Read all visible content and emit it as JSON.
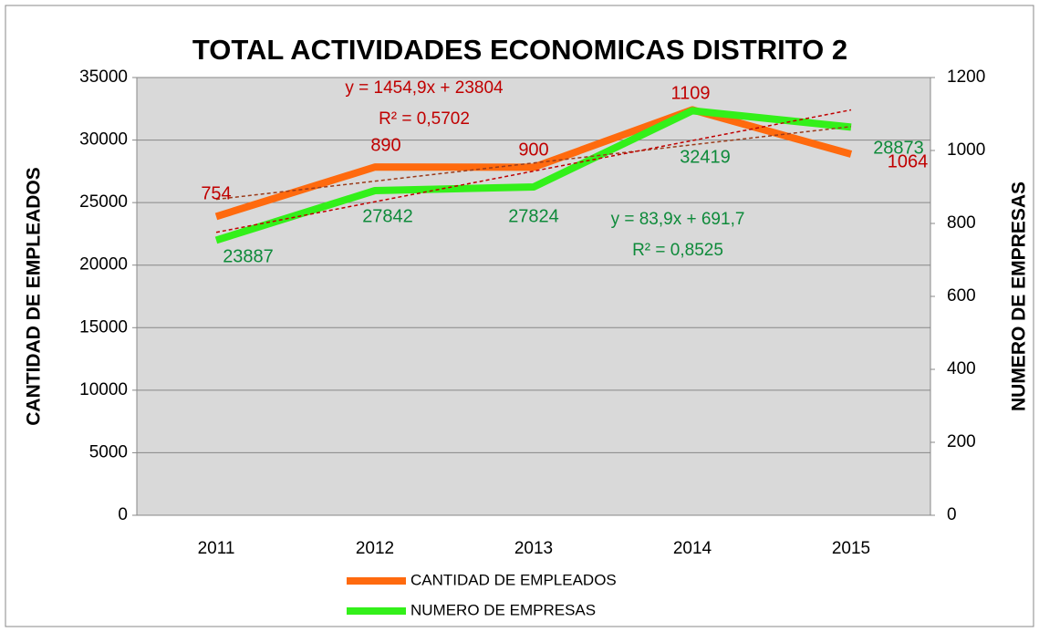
{
  "chart_data": {
    "type": "line",
    "title": "TOTAL ACTIVIDADES ECONOMICAS DISTRITO 2",
    "ylabel": "CANTIDAD DE EMPLEADOS",
    "y2label": "NUMERO DE EMPRESAS",
    "categories": [
      "2011",
      "2012",
      "2013",
      "2014",
      "2015"
    ],
    "series": [
      {
        "name": "CANTIDAD DE EMPLEADOS",
        "color": "#ff6a0e",
        "label_color": "#0e8a3a",
        "values": [
          23887,
          27842,
          27824,
          32419,
          28873
        ],
        "trendline": {
          "slope": 1454.9,
          "intercept": 23804,
          "equation": "y = 1454,9x + 23804",
          "r2": "R² = 0,5702",
          "color": "#9b3b1a",
          "text_color": "#c00000"
        }
      },
      {
        "name": "NUMERO DE EMPRESAS",
        "color": "#33f01a",
        "label_color": "#c00000",
        "axis": "y2",
        "values": [
          754,
          890,
          900,
          1109,
          1064
        ],
        "trendline": {
          "slope": 83.9,
          "intercept": 691.7,
          "equation": "y = 83,9x + 691,7",
          "r2": "R² = 0,8525",
          "color": "#c00000",
          "text_color": "#0e8a3a"
        }
      }
    ],
    "ylim": [
      0,
      35000
    ],
    "yticks": [
      0,
      5000,
      10000,
      15000,
      20000,
      25000,
      30000,
      35000
    ],
    "y2lim": [
      0,
      1200
    ],
    "y2ticks": [
      0,
      200,
      400,
      600,
      800,
      1000,
      1200
    ],
    "grid": true,
    "legend": "bottom"
  }
}
